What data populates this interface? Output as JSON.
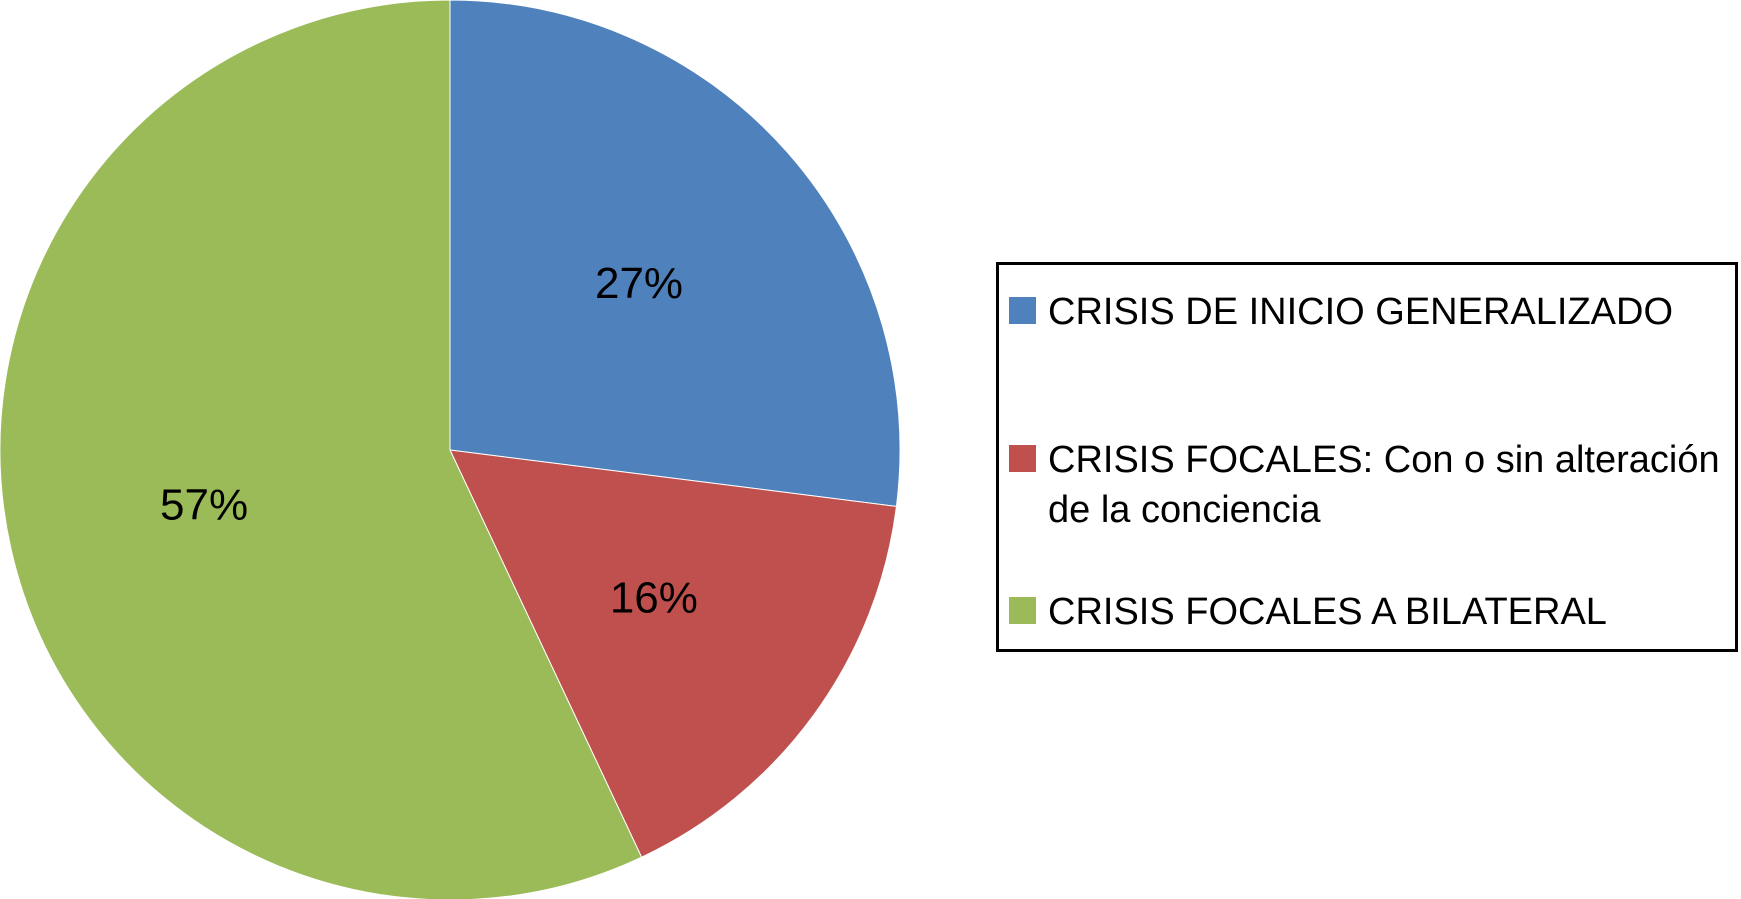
{
  "chart_data": {
    "type": "pie",
    "title": "",
    "slices": [
      {
        "label": "CRISIS DE INICIO GENERALIZADO",
        "value": 27,
        "display": "27%",
        "color": "#4f81bd"
      },
      {
        "label": "CRISIS FOCALES: Con o sin alteración de la conciencia",
        "value": 16,
        "display": "16%",
        "color": "#c0504d"
      },
      {
        "label": "CRISIS FOCALES A BILATERAL",
        "value": 57,
        "display": "57%",
        "color": "#9bbb59"
      }
    ],
    "legend_position": "right",
    "start_angle_deg": 0,
    "direction": "clockwise"
  }
}
